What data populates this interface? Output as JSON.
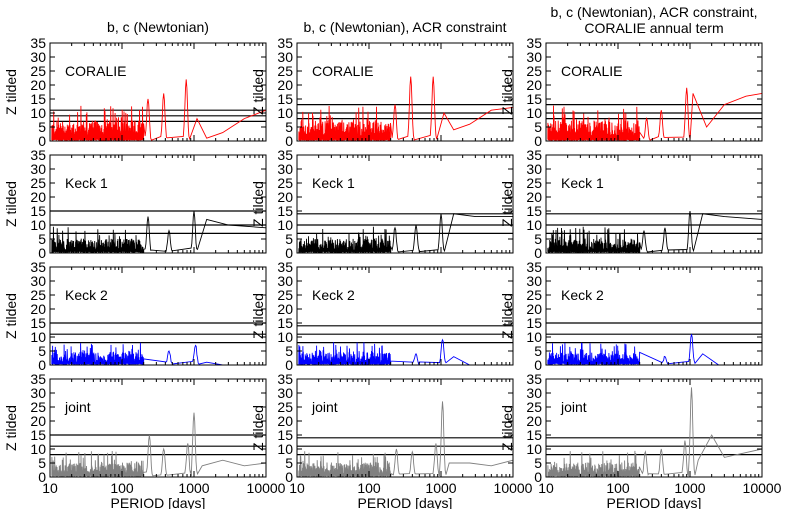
{
  "chart_data": {
    "type": "line",
    "figure": "periodogram grid",
    "columns": [
      {
        "title_lines": [
          "b, c (Newtonian)"
        ]
      },
      {
        "title_lines": [
          "b, c (Newtonian), ACR constraint"
        ]
      },
      {
        "title_lines": [
          "b, c (Newtonian), ACR constraint,",
          "CORALIE annual term"
        ]
      }
    ],
    "rows": [
      {
        "label": "CORALIE",
        "color": "#ff0000"
      },
      {
        "label": "Keck 1",
        "color": "#000000"
      },
      {
        "label": "Keck 2",
        "color": "#0000ff"
      },
      {
        "label": "joint",
        "color": "#808080"
      }
    ],
    "ylabel": "Z tilded",
    "xlabel": "PERIOD [days]",
    "xscale": "log",
    "xlim": [
      10,
      10000
    ],
    "ylim": [
      0,
      35
    ],
    "xticks": [
      10,
      100,
      1000,
      10000
    ],
    "xtick_labels": [
      "10",
      "100",
      "1000",
      "10000"
    ],
    "yticks": [
      0,
      5,
      10,
      15,
      20,
      25,
      30,
      35
    ],
    "ytick_labels": [
      "0",
      "5",
      "10",
      "15",
      "20",
      "25",
      "30",
      "35"
    ],
    "fap_levels": [
      [
        [
          7,
          9,
          11
        ],
        [
          8,
          10,
          13
        ],
        [
          8,
          10,
          13
        ]
      ],
      [
        [
          7,
          10,
          15
        ],
        [
          7,
          10,
          14
        ],
        [
          7,
          10,
          14
        ]
      ],
      [
        [
          8,
          11,
          15
        ],
        [
          8,
          11,
          14
        ],
        [
          8,
          11,
          15
        ]
      ],
      [
        [
          8,
          11,
          15
        ],
        [
          8,
          11,
          14
        ],
        [
          8,
          11,
          14
        ]
      ]
    ],
    "series": [
      [
        {
          "noise": [
            2,
            9,
            7
          ],
          "peaks": [
            [
              230,
              15
            ],
            [
              380,
              17
            ],
            [
              780,
              22
            ]
          ],
          "tail": [
            [
              1100,
              8
            ],
            [
              1500,
              1
            ],
            [
              2500,
              3
            ],
            [
              5000,
              8
            ],
            [
              10000,
              11
            ]
          ]
        },
        {
          "noise": [
            2,
            9,
            7
          ],
          "peaks": [
            [
              230,
              13
            ],
            [
              380,
              23
            ],
            [
              780,
              23
            ]
          ],
          "tail": [
            [
              1100,
              10
            ],
            [
              1500,
              4
            ],
            [
              2500,
              6
            ],
            [
              5000,
              11
            ],
            [
              10000,
              12
            ]
          ]
        },
        {
          "noise": [
            2,
            9,
            7
          ],
          "peaks": [
            [
              250,
              8
            ],
            [
              400,
              11
            ],
            [
              900,
              19
            ]
          ],
          "tail": [
            [
              1100,
              17
            ],
            [
              1700,
              5
            ],
            [
              3000,
              13
            ],
            [
              6000,
              16
            ],
            [
              10000,
              17
            ]
          ]
        }
      ],
      [
        {
          "noise": [
            1,
            7,
            5
          ],
          "peaks": [
            [
              230,
              13
            ],
            [
              450,
              8
            ],
            [
              1000,
              15
            ]
          ],
          "tail": [
            [
              1500,
              12
            ],
            [
              3000,
              10
            ],
            [
              10000,
              9
            ]
          ]
        },
        {
          "noise": [
            1,
            7,
            5
          ],
          "peaks": [
            [
              230,
              9
            ],
            [
              450,
              10
            ],
            [
              1000,
              14
            ]
          ],
          "tail": [
            [
              1500,
              14
            ],
            [
              3000,
              13
            ],
            [
              10000,
              13
            ]
          ]
        },
        {
          "noise": [
            1,
            7,
            5
          ],
          "peaks": [
            [
              230,
              8
            ],
            [
              450,
              9
            ],
            [
              1000,
              15
            ]
          ],
          "tail": [
            [
              1500,
              14
            ],
            [
              3000,
              13
            ],
            [
              10000,
              12
            ]
          ]
        }
      ],
      [
        {
          "noise": [
            1,
            6,
            4
          ],
          "peaks": [
            [
              450,
              5
            ],
            [
              1050,
              7
            ]
          ],
          "tail": [
            [
              1500,
              1
            ],
            [
              2500,
              0
            ],
            [
              10000,
              0
            ]
          ]
        },
        {
          "noise": [
            1,
            6,
            4
          ],
          "peaks": [
            [
              450,
              4
            ],
            [
              1050,
              9
            ]
          ],
          "tail": [
            [
              1500,
              3
            ],
            [
              2500,
              0
            ],
            [
              10000,
              0
            ]
          ]
        },
        {
          "noise": [
            1,
            6,
            4
          ],
          "peaks": [
            [
              450,
              3
            ],
            [
              1050,
              11
            ]
          ],
          "tail": [
            [
              1500,
              4
            ],
            [
              2500,
              0
            ],
            [
              10000,
              0
            ]
          ]
        }
      ],
      [
        {
          "noise": [
            1,
            7,
            4
          ],
          "peaks": [
            [
              240,
              15
            ],
            [
              380,
              10
            ],
            [
              820,
              12
            ],
            [
              1000,
              23
            ]
          ],
          "tail": [
            [
              1300,
              4
            ],
            [
              2500,
              6
            ],
            [
              5000,
              4
            ],
            [
              10000,
              5
            ]
          ]
        },
        {
          "noise": [
            1,
            7,
            4
          ],
          "peaks": [
            [
              240,
              10
            ],
            [
              400,
              9
            ],
            [
              850,
              12
            ],
            [
              1050,
              27
            ]
          ],
          "tail": [
            [
              1300,
              5
            ],
            [
              2500,
              5
            ],
            [
              5000,
              4
            ],
            [
              10000,
              6
            ]
          ]
        },
        {
          "noise": [
            1,
            7,
            4
          ],
          "peaks": [
            [
              240,
              9
            ],
            [
              400,
              10
            ],
            [
              850,
              13
            ],
            [
              1050,
              32
            ]
          ],
          "tail": [
            [
              1300,
              6
            ],
            [
              2000,
              15
            ],
            [
              3000,
              7
            ],
            [
              10000,
              10
            ]
          ]
        }
      ]
    ]
  }
}
